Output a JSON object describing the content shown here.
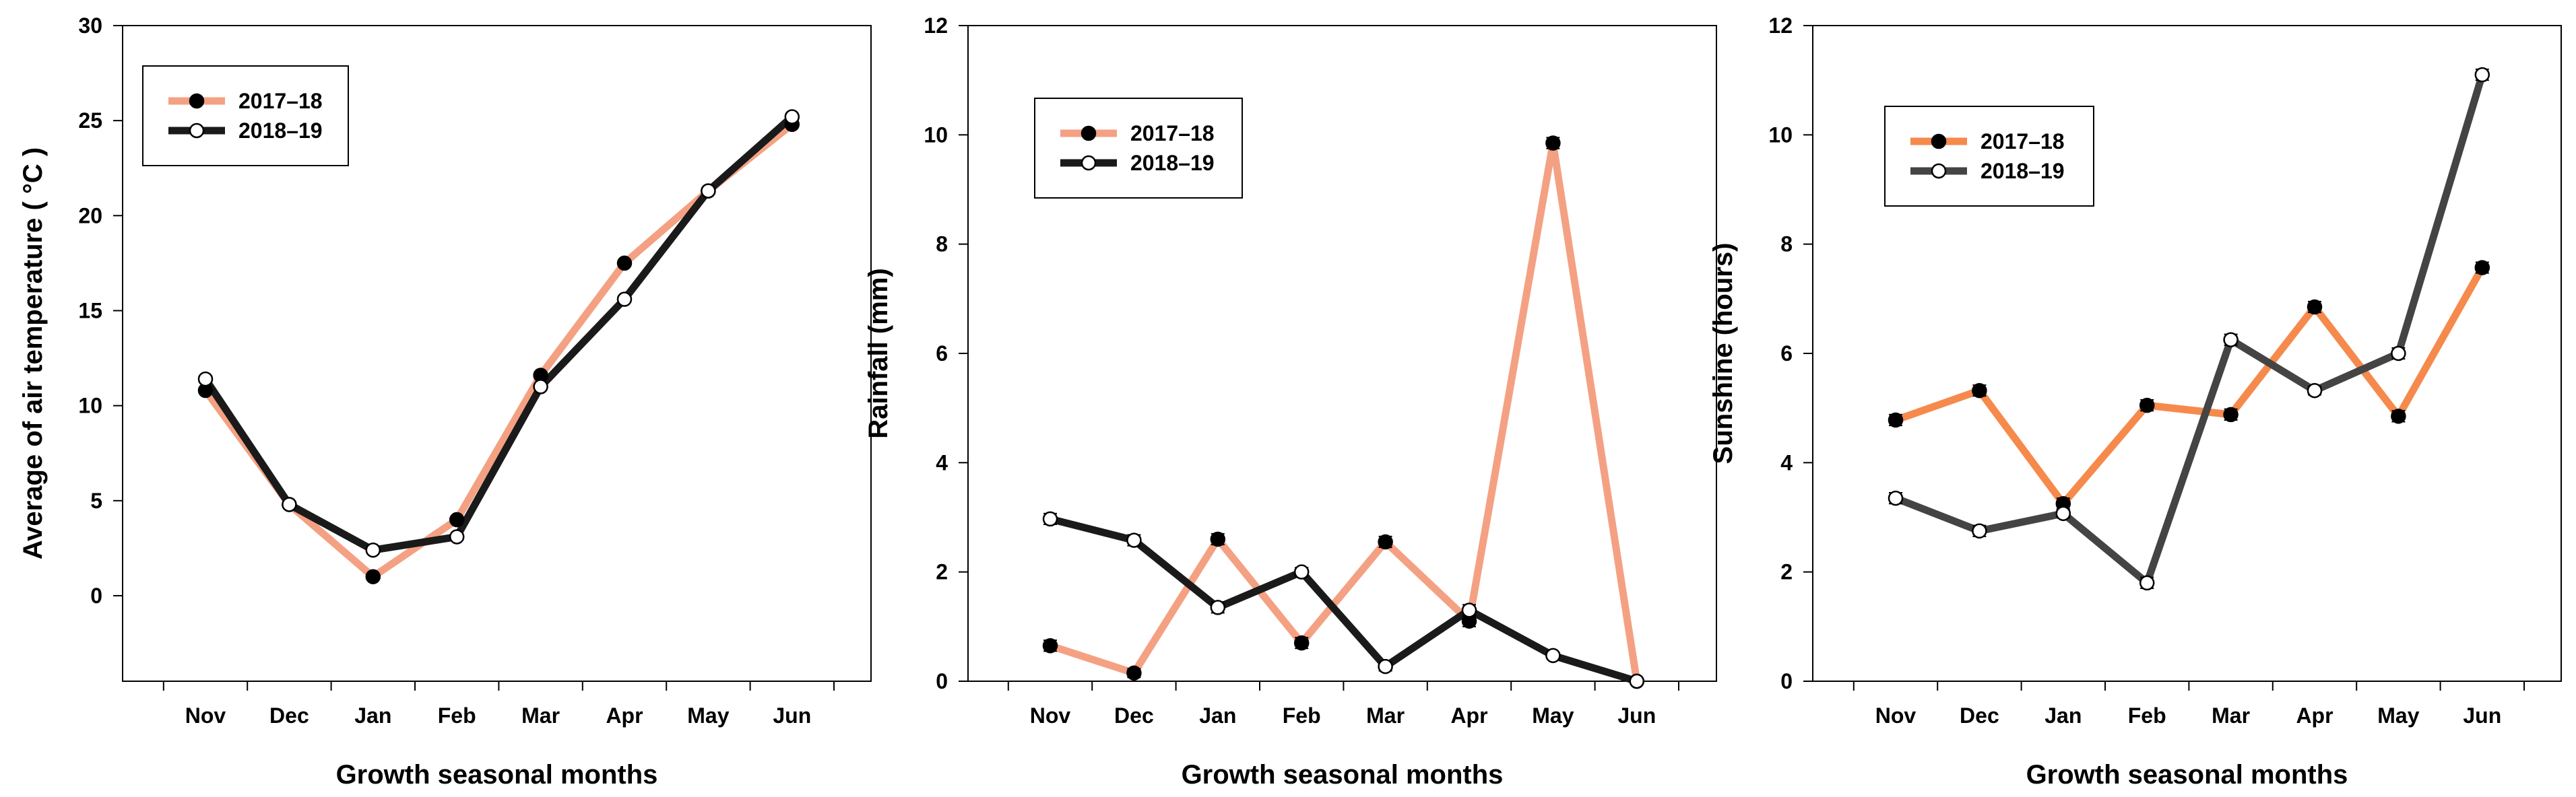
{
  "chart_data": [
    {
      "type": "line",
      "categories": [
        "Nov",
        "Dec",
        "Jan",
        "Feb",
        "Mar",
        "Apr",
        "May",
        "Jun"
      ],
      "xlabel": "Growth seasonal months",
      "ylabel": "Average of air temperature ( °C )",
      "ylim": [
        -4.5,
        30
      ],
      "yticks": [
        0,
        5,
        10,
        15,
        20,
        25,
        30
      ],
      "legend_position": "top-left",
      "series": [
        {
          "name": "2017–18",
          "color": "#F4A183",
          "marker": "filled",
          "values": [
            10.8,
            4.8,
            1.0,
            4.0,
            11.6,
            17.5,
            21.3,
            24.8
          ],
          "errors": [
            0.15,
            0.1,
            0.1,
            0.1,
            0.15,
            0.15,
            0.15,
            0.15
          ]
        },
        {
          "name": "2018–19",
          "color": "#1A1A1A",
          "marker": "open",
          "values": [
            11.4,
            4.8,
            2.4,
            3.1,
            11.0,
            15.6,
            21.3,
            25.2
          ],
          "errors": [
            0.15,
            0.1,
            0.1,
            0.1,
            0.15,
            0.15,
            0.15,
            0.15
          ]
        }
      ]
    },
    {
      "type": "line",
      "categories": [
        "Nov",
        "Dec",
        "Jan",
        "Feb",
        "Mar",
        "Apr",
        "May",
        "Jun"
      ],
      "xlabel": "Growth seasonal months",
      "ylabel": "Rainfall (mm)",
      "ylim": [
        0,
        12
      ],
      "yticks": [
        0,
        2,
        4,
        6,
        8,
        10,
        12
      ],
      "legend_position": "top-left",
      "series": [
        {
          "name": "2017–18",
          "color": "#F4A183",
          "marker": "filled",
          "values": [
            0.65,
            0.15,
            2.6,
            0.7,
            2.55,
            1.1,
            9.85,
            0.0
          ],
          "errors": [
            0.1,
            0.08,
            0.1,
            0.1,
            0.1,
            0.1,
            0.1,
            0.0
          ]
        },
        {
          "name": "2018–19",
          "color": "#1A1A1A",
          "marker": "open",
          "values": [
            2.97,
            2.58,
            1.35,
            2.0,
            0.27,
            1.3,
            0.47,
            0.0
          ],
          "errors": [
            0.1,
            0.1,
            0.1,
            0.08,
            0.08,
            0.1,
            0.05,
            0.0
          ]
        }
      ]
    },
    {
      "type": "line",
      "categories": [
        "Nov",
        "Dec",
        "Jan",
        "Feb",
        "Mar",
        "Apr",
        "May",
        "Jun"
      ],
      "xlabel": "Growth seasonal months",
      "ylabel": "Sunshine (hours)",
      "ylim": [
        0,
        12
      ],
      "yticks": [
        0,
        2,
        4,
        6,
        8,
        10,
        12
      ],
      "legend_position": "top-left",
      "series": [
        {
          "name": "2017–18",
          "color": "#F58A4C",
          "marker": "filled",
          "values": [
            4.78,
            5.32,
            3.25,
            5.05,
            4.88,
            6.85,
            4.85,
            7.57
          ],
          "errors": [
            0.1,
            0.1,
            0.1,
            0.1,
            0.1,
            0.1,
            0.1,
            0.1
          ]
        },
        {
          "name": "2018–19",
          "color": "#444444",
          "marker": "open",
          "values": [
            3.35,
            2.75,
            3.07,
            1.8,
            6.25,
            5.32,
            6.0,
            11.1
          ],
          "errors": [
            0.1,
            0.1,
            0.08,
            0.1,
            0.1,
            0.08,
            0.1,
            0.1
          ]
        }
      ]
    }
  ]
}
